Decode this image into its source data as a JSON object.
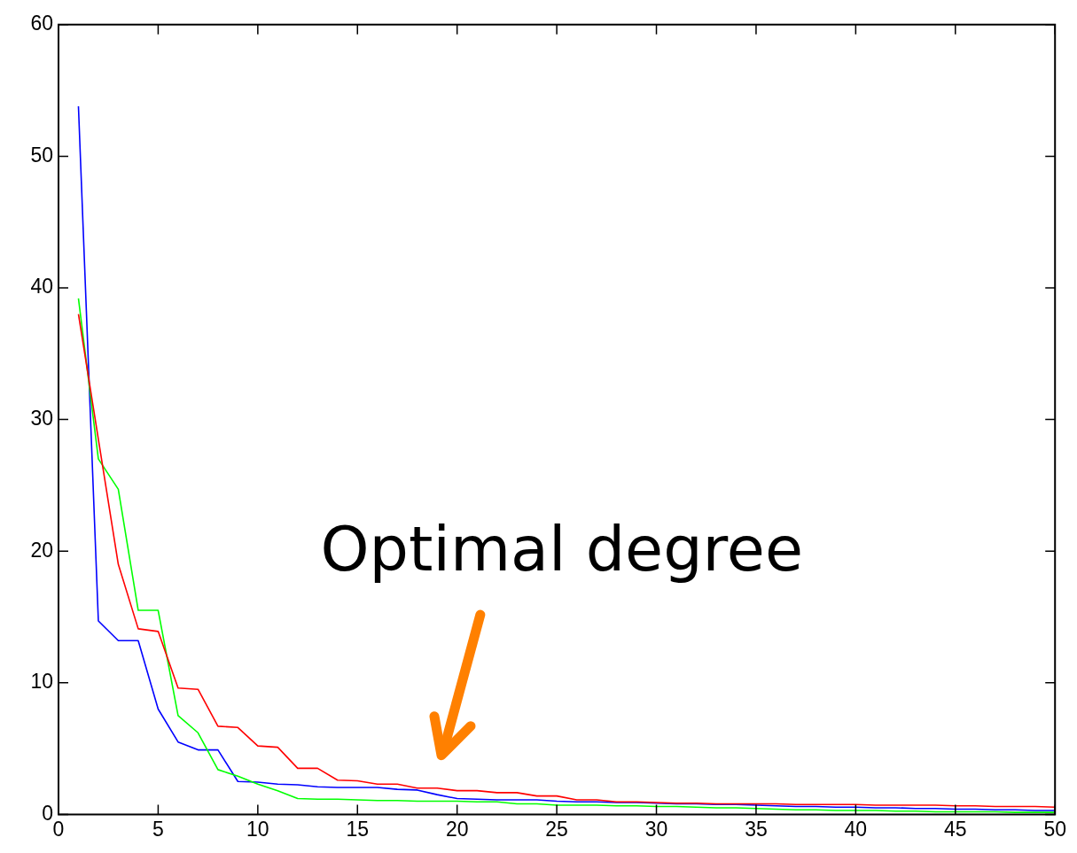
{
  "chart_data": {
    "type": "line",
    "x": [
      1,
      2,
      3,
      4,
      5,
      6,
      7,
      8,
      9,
      10,
      11,
      12,
      13,
      14,
      15,
      16,
      17,
      18,
      19,
      20,
      21,
      22,
      23,
      24,
      25,
      26,
      27,
      28,
      29,
      30,
      31,
      32,
      33,
      34,
      35,
      36,
      37,
      38,
      39,
      40,
      41,
      42,
      43,
      44,
      45,
      46,
      47,
      48,
      49,
      50
    ],
    "series": [
      {
        "color": "#ff0000",
        "values": [
          38,
          28.5,
          19,
          14.1,
          13.9,
          9.6,
          9.5,
          6.7,
          6.6,
          5.2,
          5.1,
          3.5,
          3.5,
          2.6,
          2.55,
          2.3,
          2.3,
          2.0,
          2.0,
          1.8,
          1.8,
          1.65,
          1.65,
          1.4,
          1.4,
          1.1,
          1.1,
          0.95,
          0.95,
          0.9,
          0.85,
          0.85,
          0.8,
          0.8,
          0.8,
          0.8,
          0.75,
          0.75,
          0.75,
          0.75,
          0.7,
          0.7,
          0.7,
          0.7,
          0.65,
          0.65,
          0.6,
          0.6,
          0.6,
          0.55
        ]
      },
      {
        "color": "#00ff00",
        "values": [
          39.2,
          27,
          24.7,
          15.5,
          15.5,
          7.5,
          6.2,
          3.4,
          2.9,
          2.3,
          1.8,
          1.2,
          1.15,
          1.15,
          1.1,
          1.05,
          1.05,
          1.0,
          1.0,
          1.0,
          0.95,
          0.95,
          0.8,
          0.8,
          0.7,
          0.7,
          0.7,
          0.65,
          0.65,
          0.6,
          0.6,
          0.55,
          0.5,
          0.5,
          0.45,
          0.4,
          0.35,
          0.35,
          0.3,
          0.3,
          0.3,
          0.25,
          0.25,
          0.2,
          0.2,
          0.2,
          0.2,
          0.15,
          0.15,
          0.15
        ]
      },
      {
        "color": "#0000ff",
        "values": [
          53.8,
          14.7,
          13.2,
          13.2,
          8.0,
          5.5,
          4.9,
          4.9,
          2.5,
          2.45,
          2.3,
          2.25,
          2.1,
          2.05,
          2.05,
          2.05,
          1.9,
          1.85,
          1.5,
          1.2,
          1.15,
          1.1,
          1.1,
          1.1,
          1.0,
          0.95,
          0.95,
          0.9,
          0.9,
          0.85,
          0.8,
          0.8,
          0.75,
          0.75,
          0.7,
          0.65,
          0.6,
          0.6,
          0.55,
          0.55,
          0.5,
          0.5,
          0.45,
          0.45,
          0.4,
          0.4,
          0.35,
          0.35,
          0.3,
          0.3
        ]
      }
    ],
    "xlim": [
      0,
      50
    ],
    "xticks": [
      0,
      5,
      10,
      15,
      20,
      25,
      30,
      35,
      40,
      45,
      50
    ],
    "ylim": [
      0,
      60
    ],
    "yticks": [
      0,
      10,
      20,
      30,
      40,
      50,
      60
    ],
    "grid": false,
    "legend": false,
    "marker": "none",
    "line_style": "solid",
    "annotations": [
      "Optimal degree"
    ]
  }
}
